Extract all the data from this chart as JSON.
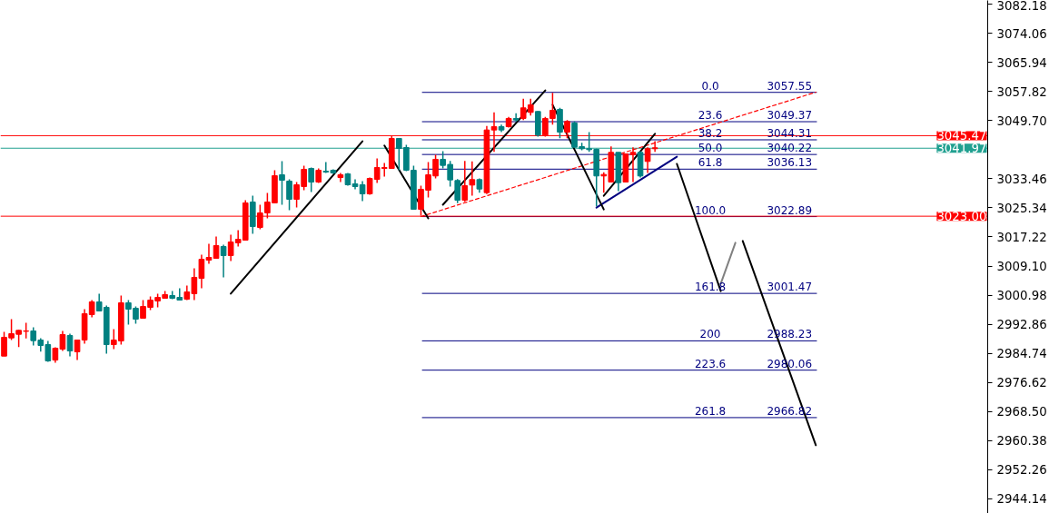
{
  "chart_data": {
    "type": "candlestick",
    "categories": [
      null,
      null,
      null,
      null,
      null,
      null,
      null,
      null,
      null,
      null,
      null,
      null,
      null,
      null,
      null,
      null,
      null,
      null,
      null,
      null,
      null,
      null,
      null,
      null,
      null,
      null,
      null,
      null,
      null,
      null,
      null,
      null,
      null,
      null,
      null,
      null,
      null,
      null,
      null,
      null,
      null,
      null,
      null,
      null,
      null,
      null,
      null,
      null,
      null,
      null,
      null,
      null,
      null,
      null,
      null,
      null,
      null,
      null,
      null,
      null,
      null,
      null,
      null,
      null,
      null,
      null,
      null,
      null,
      null,
      null,
      null,
      null,
      null,
      null,
      null,
      null,
      null,
      null,
      null,
      null,
      null,
      null,
      null,
      null,
      null,
      null,
      null,
      null,
      null,
      null,
      null,
      null,
      null,
      null,
      null,
      null,
      null,
      null,
      null,
      null,
      null,
      null,
      null,
      null,
      null,
      null,
      null,
      null,
      null,
      null,
      null,
      null,
      null,
      null,
      null,
      null,
      null,
      null,
      null,
      null,
      null,
      null,
      null,
      null,
      null,
      null,
      null,
      null,
      null,
      null,
      null,
      null,
      null,
      null,
      null
    ],
    "ohlc": [
      [
        2983.98,
        2990.74,
        2983.98,
        2989.22
      ],
      [
        2989.05,
        2994.28,
        2988.46,
        2990.23
      ],
      [
        2990.06,
        2991.33,
        2986.52,
        2991.16
      ],
      [
        2990.9,
        2993.27,
        2988.88,
        2991.0
      ],
      [
        2990.99,
        2992.0,
        2986.94,
        2988.29
      ],
      [
        2988.46,
        2988.96,
        2985.25,
        2986.94
      ],
      [
        2987.19,
        2988.2,
        2982.38,
        2982.63
      ],
      [
        2982.88,
        2986.43,
        2982.13,
        2986.18
      ],
      [
        2985.93,
        2991.0,
        2985.42,
        2989.98
      ],
      [
        2989.72,
        2990.23,
        2983.9,
        2985.42
      ],
      [
        2985.17,
        2988.46,
        2982.88,
        2988.46
      ],
      [
        2988.46,
        2997.07,
        2987.45,
        2995.8
      ],
      [
        2995.55,
        2999.6,
        2994.79,
        2999.1
      ],
      [
        2999.1,
        3001.38,
        2996.56,
        2996.56
      ],
      [
        2997.58,
        2998.08,
        2984.66,
        2987.19
      ],
      [
        2987.19,
        2991.5,
        2985.93,
        2988.46
      ],
      [
        2988.21,
        3000.87,
        2987.19,
        2998.84
      ],
      [
        2998.84,
        2999.6,
        2992.76,
        2997.07
      ],
      [
        2997.32,
        2997.83,
        2993.0,
        2994.28
      ],
      [
        2994.54,
        2999.6,
        2994.54,
        2997.83
      ],
      [
        2997.58,
        3000.62,
        2996.82,
        2999.6
      ],
      [
        2999.35,
        3001.38,
        2997.58,
        3000.36
      ],
      [
        3000.11,
        3002.14,
        3000.11,
        3001.12
      ],
      [
        3000.87,
        3002.14,
        2999.86,
        3000.11
      ],
      [
        3000.36,
        3002.9,
        2999.6,
        2999.6
      ],
      [
        2999.86,
        3003.66,
        2999.6,
        3001.88
      ],
      [
        3001.38,
        3008.47,
        2999.6,
        3005.94
      ],
      [
        3005.68,
        3012.27,
        3002.9,
        3011.0
      ],
      [
        3010.75,
        3015.31,
        3009.73,
        3011.51
      ],
      [
        3011.25,
        3017.33,
        3011.25,
        3014.8
      ],
      [
        3014.55,
        3015.05,
        3005.94,
        3012.02
      ],
      [
        3012.02,
        3017.84,
        3010.5,
        3015.81
      ],
      [
        3015.56,
        3019.11,
        3014.55,
        3016.57
      ],
      [
        3016.32,
        3027.47,
        3016.32,
        3026.71
      ],
      [
        3026.96,
        3028.73,
        3018.1,
        3020.11
      ],
      [
        3019.87,
        3026.2,
        3019.36,
        3023.92
      ],
      [
        3023.92,
        3029.49,
        3022.4,
        3026.96
      ],
      [
        3026.71,
        3035.83,
        3026.71,
        3034.31
      ],
      [
        3034.56,
        3038.36,
        3026.2,
        3033.04
      ],
      [
        3032.79,
        3033.29,
        3024.68,
        3027.72
      ],
      [
        3027.72,
        3032.53,
        3025.44,
        3031.77
      ],
      [
        3031.27,
        3037.09,
        3030.25,
        3036.08
      ],
      [
        3036.33,
        3036.58,
        3029.75,
        3032.53
      ],
      [
        3032.53,
        3036.33,
        3032.28,
        3035.83
      ],
      [
        3035.57,
        3038.1,
        3035.07,
        3035.32
      ],
      [
        3035.83,
        3036.1,
        3034.8,
        3035.07
      ],
      [
        3033.8,
        3035.07,
        3032.53,
        3034.56
      ],
      [
        3034.81,
        3035.07,
        3031.52,
        3031.77
      ],
      [
        3032.03,
        3033.29,
        3030.51,
        3031.27
      ],
      [
        3031.77,
        3032.79,
        3027.21,
        3029.24
      ],
      [
        3029.24,
        3033.8,
        3028.99,
        3033.54
      ],
      [
        3033.29,
        3039.12,
        3032.28,
        3036.58
      ],
      [
        3036.33,
        3037.85,
        3034.05,
        3036.58
      ],
      [
        3036.33,
        3045.45,
        3036.33,
        3044.69
      ],
      [
        3044.69,
        3044.69,
        3035.83,
        3041.9
      ],
      [
        3042.16,
        3042.92,
        3035.57,
        3035.83
      ],
      [
        3035.83,
        3037.09,
        3024.93,
        3024.93
      ],
      [
        3024.93,
        3031.52,
        3023.16,
        3030.51
      ],
      [
        3030.26,
        3038.1,
        3028.23,
        3034.56
      ],
      [
        3034.23,
        3040.14,
        3033.55,
        3038.87
      ],
      [
        3038.87,
        3041.15,
        3036.34,
        3037.18
      ],
      [
        3037.44,
        3038.45,
        3031.27,
        3033.13
      ],
      [
        3032.96,
        3033.38,
        3026.63,
        3027.47
      ],
      [
        3027.47,
        3038.45,
        3027.05,
        3031.52
      ],
      [
        3031.69,
        3038.28,
        3028.74,
        3033.21
      ],
      [
        3033.21,
        3033.55,
        3029.58,
        3030.6
      ],
      [
        3029.58,
        3048.16,
        3029.16,
        3047.06
      ],
      [
        3047.06,
        3051.96,
        3040.98,
        3047.99
      ],
      [
        3047.99,
        3048.58,
        3046.47,
        3047.06
      ],
      [
        3047.99,
        3050.69,
        3047.74,
        3050.27
      ],
      [
        3050.27,
        3051.7,
        3049.42,
        3049.85
      ],
      [
        3050.27,
        3055.76,
        3049.85,
        3053.22
      ],
      [
        3051.96,
        3055.76,
        3051.11,
        3054.07
      ],
      [
        3052.21,
        3052.38,
        3045.2,
        3045.62
      ],
      [
        3045.62,
        3050.69,
        3045.2,
        3050.27
      ],
      [
        3050.27,
        3057.44,
        3048.58,
        3052.55
      ],
      [
        3052.8,
        3053.22,
        3044.78,
        3046.47
      ],
      [
        3046.47,
        3049.85,
        3044.78,
        3049.42
      ],
      [
        3049.0,
        3049.42,
        3042.0,
        3042.25
      ],
      [
        3042.42,
        3043.51,
        3041.4,
        3041.83
      ],
      [
        3041.83,
        3046.47,
        3040.98,
        3041.57
      ],
      [
        3041.66,
        3041.83,
        3025.78,
        3034.23
      ],
      [
        3034.23,
        3035.24,
        3029.58,
        3034.65
      ],
      [
        3032.54,
        3042.5,
        3032.54,
        3040.81
      ],
      [
        3040.81,
        3040.81,
        3030.0,
        3032.37
      ],
      [
        3032.54,
        3040.39,
        3032.54,
        3040.39
      ],
      [
        3040.14,
        3042.25,
        3032.54,
        3040.81
      ],
      [
        3040.81,
        3041.15,
        3033.8,
        3034.23
      ],
      [
        3038.28,
        3042.25,
        3035.07,
        3041.83
      ],
      [
        3041.83,
        3043.94,
        3040.98,
        3042.08
      ],
      null,
      null,
      null,
      null,
      null,
      null,
      null,
      null,
      null,
      null,
      null,
      null,
      null,
      null,
      null,
      null,
      null,
      null,
      null,
      null,
      null,
      null,
      null,
      null,
      null,
      null,
      null,
      null,
      null,
      null,
      null,
      null,
      null,
      null,
      null,
      null,
      null,
      null,
      null,
      null,
      null,
      null,
      null,
      null,
      null
    ],
    "colors": [
      "#ff0000",
      "#ff0000",
      "#ff0000",
      "#ff0000",
      "#008080",
      "#008080",
      "#008080",
      "#ff0000",
      "#ff0000",
      "#008080",
      "#ff0000",
      "#ff0000",
      "#ff0000",
      "#008080",
      "#008080",
      "#ff0000",
      "#ff0000",
      "#008080",
      "#008080",
      "#ff0000",
      "#ff0000",
      "#ff0000",
      "#ff0000",
      "#008080",
      "#008080",
      "#ff0000",
      "#ff0000",
      "#ff0000",
      "#ff0000",
      "#ff0000",
      "#008080",
      "#ff0000",
      "#ff0000",
      "#ff0000",
      "#008080",
      "#ff0000",
      "#ff0000",
      "#ff0000",
      "#008080",
      "#008080",
      "#ff0000",
      "#ff0000",
      "#008080",
      "#ff0000",
      "#008080",
      "#008080",
      "#ff0000",
      "#008080",
      "#008080",
      "#008080",
      "#ff0000",
      "#ff0000",
      "#ff0000",
      "#ff0000",
      "#008080",
      "#008080",
      "#008080",
      "#ff0000",
      "#ff0000",
      "#ff0000",
      "#008080",
      "#008080",
      "#008080",
      "#ff0000",
      "#ff0000",
      "#008080",
      "#ff0000",
      "#ff0000",
      "#008080",
      "#ff0000",
      "#008080",
      "#ff0000",
      "#ff0000",
      "#008080",
      "#ff0000",
      "#ff0000",
      "#008080",
      "#ff0000",
      "#008080",
      "#008080",
      "#008080",
      "#008080",
      "#ff0000",
      "#ff0000",
      "#008080",
      "#ff0000",
      "#ff0000",
      "#008080",
      "#ff0000",
      "#ff0000",
      null,
      null,
      null,
      null,
      null,
      null,
      null,
      null,
      null,
      null,
      null,
      null,
      null,
      null,
      null,
      null,
      null,
      null,
      null,
      null,
      null,
      null,
      null,
      null,
      null,
      null,
      null,
      null,
      null,
      null,
      null,
      null,
      null,
      null,
      null,
      null,
      null,
      null,
      null,
      null,
      null,
      null,
      null,
      null,
      null
    ],
    "series": [
      {
        "type": "line",
        "color": "#ff0000",
        "line_style": "dashed",
        "values": [
          null,
          null,
          null,
          null,
          null,
          null,
          null,
          null,
          null,
          null,
          null,
          null,
          null,
          null,
          null,
          null,
          null,
          null,
          null,
          null,
          null,
          null,
          null,
          null,
          null,
          null,
          null,
          null,
          null,
          null,
          null,
          null,
          null,
          null,
          null,
          null,
          null,
          null,
          null,
          null,
          null,
          null,
          null,
          null,
          null,
          null,
          null,
          null,
          null,
          null,
          null,
          null,
          null,
          null,
          null,
          null,
          null,
          3022.9,
          null,
          null,
          null,
          null,
          null,
          null,
          null,
          null,
          null,
          null,
          null,
          null,
          null,
          null,
          null,
          null,
          null,
          null,
          null,
          null,
          null,
          null,
          null,
          null,
          null,
          null,
          null,
          null,
          null,
          null,
          null,
          null,
          null,
          null,
          null,
          null,
          null,
          null,
          null,
          null,
          null,
          null,
          null,
          null,
          null,
          null,
          null,
          null,
          null,
          null,
          null,
          null,
          null,
          3057.6,
          null,
          null,
          null,
          null,
          null,
          null,
          null,
          null,
          null,
          null,
          null,
          null,
          null,
          null,
          null,
          null,
          null,
          null,
          null,
          null,
          null,
          null,
          null
        ]
      },
      {
        "type": "line",
        "color": "#000080",
        "values": [
          null,
          null,
          null,
          null,
          null,
          null,
          null,
          null,
          null,
          null,
          null,
          null,
          null,
          null,
          null,
          null,
          null,
          null,
          null,
          null,
          null,
          null,
          null,
          null,
          null,
          null,
          null,
          null,
          null,
          null,
          null,
          null,
          null,
          null,
          null,
          null,
          null,
          null,
          null,
          null,
          null,
          null,
          null,
          null,
          null,
          null,
          null,
          null,
          null,
          null,
          null,
          null,
          null,
          null,
          null,
          null,
          null,
          null,
          null,
          null,
          null,
          null,
          null,
          null,
          null,
          null,
          null,
          null,
          null,
          null,
          null,
          null,
          null,
          null,
          null,
          null,
          null,
          null,
          null,
          null,
          null,
          3025.4,
          null,
          null,
          null,
          null,
          null,
          null,
          null,
          null,
          null,
          null,
          3039.6,
          null,
          null,
          null,
          null,
          null,
          null,
          null,
          null,
          null,
          null,
          null,
          null,
          null,
          null,
          null,
          null,
          null,
          null,
          null,
          null,
          null,
          null,
          null,
          null,
          null,
          null,
          null,
          null,
          null,
          null,
          null,
          null,
          null,
          null,
          null,
          null,
          null,
          null,
          null,
          null,
          null,
          null
        ]
      },
      {
        "type": "line",
        "color": "#000000",
        "values": [
          null,
          null,
          null,
          null,
          null,
          null,
          null,
          null,
          null,
          null,
          null,
          null,
          null,
          null,
          null,
          null,
          null,
          null,
          null,
          null,
          null,
          null,
          null,
          null,
          null,
          null,
          null,
          null,
          null,
          null,
          null,
          3001.4,
          null,
          null,
          null,
          null,
          null,
          null,
          null,
          null,
          null,
          null,
          null,
          null,
          null,
          null,
          null,
          null,
          null,
          3043.9,
          null,
          null,
          null,
          null,
          null,
          null,
          null,
          null,
          null,
          null,
          null,
          null,
          null,
          null,
          null,
          null,
          null,
          null,
          null,
          null,
          null,
          null,
          null,
          null,
          null,
          null,
          null,
          null,
          null,
          null,
          null,
          null,
          null,
          null,
          null,
          null,
          null,
          null,
          null,
          null,
          null,
          null,
          null,
          null,
          null,
          null,
          null,
          null,
          null,
          null,
          null,
          null,
          null,
          null,
          null,
          null,
          null,
          null,
          null,
          null,
          null,
          null,
          null,
          null,
          null,
          null,
          null,
          null,
          null,
          null,
          null,
          null,
          null,
          null,
          null,
          null,
          null,
          null,
          null,
          null,
          null,
          null,
          null,
          null,
          null
        ]
      },
      {
        "type": "line",
        "color": "#000000",
        "values": [
          null,
          null,
          null,
          null,
          null,
          null,
          null,
          null,
          null,
          null,
          null,
          null,
          null,
          null,
          null,
          null,
          null,
          null,
          null,
          null,
          null,
          null,
          null,
          null,
          null,
          null,
          null,
          null,
          null,
          null,
          null,
          null,
          null,
          null,
          null,
          null,
          null,
          null,
          null,
          null,
          null,
          null,
          null,
          null,
          null,
          null,
          null,
          null,
          null,
          null,
          null,
          null,
          3042.7,
          null,
          null,
          null,
          null,
          null,
          3022.4,
          null,
          null,
          null,
          null,
          null,
          null,
          null,
          null,
          null,
          null,
          null,
          null,
          null,
          null,
          null,
          null,
          null,
          null,
          null,
          null,
          null,
          null,
          null,
          null,
          null,
          null,
          null,
          null,
          null,
          null,
          null,
          null,
          null,
          null,
          null,
          null,
          null,
          null,
          null,
          null,
          null,
          null,
          null,
          null,
          null,
          null,
          null,
          null,
          null,
          null,
          null,
          null,
          null,
          null,
          null,
          null,
          null,
          null,
          null,
          null,
          null,
          null,
          null,
          null,
          null,
          null,
          null,
          null,
          null,
          null,
          null,
          null,
          null,
          null,
          null,
          null
        ]
      },
      {
        "type": "line",
        "color": "#000000",
        "values": [
          null,
          null,
          null,
          null,
          null,
          null,
          null,
          null,
          null,
          null,
          null,
          null,
          null,
          null,
          null,
          null,
          null,
          null,
          null,
          null,
          null,
          null,
          null,
          null,
          null,
          null,
          null,
          null,
          null,
          null,
          null,
          null,
          null,
          null,
          null,
          null,
          null,
          null,
          null,
          null,
          null,
          null,
          null,
          null,
          null,
          null,
          null,
          null,
          null,
          null,
          null,
          null,
          null,
          null,
          null,
          null,
          null,
          null,
          null,
          null,
          3026.2,
          null,
          null,
          null,
          null,
          null,
          null,
          null,
          null,
          null,
          null,
          null,
          null,
          null,
          3058.1,
          null,
          null,
          null,
          null,
          null,
          null,
          null,
          null,
          null,
          null,
          null,
          null,
          null,
          null,
          null,
          null,
          null,
          null,
          null,
          null,
          null,
          null,
          null,
          null,
          null,
          null,
          null,
          null,
          null,
          null,
          null,
          null,
          null,
          null,
          null,
          null,
          null,
          null,
          null,
          null,
          null,
          null,
          null,
          null,
          null,
          null,
          null,
          null,
          null,
          null,
          null,
          null,
          null,
          null,
          null,
          null,
          null,
          null,
          null,
          null
        ]
      },
      {
        "type": "line",
        "color": "#000000",
        "values": [
          null,
          null,
          null,
          null,
          null,
          null,
          null,
          null,
          null,
          null,
          null,
          null,
          null,
          null,
          null,
          null,
          null,
          null,
          null,
          null,
          null,
          null,
          null,
          null,
          null,
          null,
          null,
          null,
          null,
          null,
          null,
          null,
          null,
          null,
          null,
          null,
          null,
          null,
          null,
          null,
          null,
          null,
          null,
          null,
          null,
          null,
          null,
          null,
          null,
          null,
          null,
          null,
          null,
          null,
          null,
          null,
          null,
          null,
          null,
          null,
          null,
          null,
          null,
          null,
          null,
          null,
          null,
          null,
          null,
          null,
          null,
          null,
          null,
          null,
          null,
          3054.1,
          null,
          null,
          null,
          null,
          null,
          null,
          3024.9,
          null,
          null,
          null,
          null,
          null,
          null,
          null,
          null,
          null,
          null,
          null,
          null,
          null,
          null,
          null,
          null,
          null,
          null,
          null,
          null,
          null,
          null,
          null,
          null,
          null,
          null,
          null,
          null,
          null,
          null,
          null,
          null,
          null,
          null,
          null,
          null,
          null,
          null,
          null,
          null,
          null,
          null,
          null,
          null,
          null,
          null,
          null,
          null,
          null,
          null,
          null,
          null
        ]
      },
      {
        "type": "line",
        "color": "#000000",
        "values": [
          null,
          null,
          null,
          null,
          null,
          null,
          null,
          null,
          null,
          null,
          null,
          null,
          null,
          null,
          null,
          null,
          null,
          null,
          null,
          null,
          null,
          null,
          null,
          null,
          null,
          null,
          null,
          null,
          null,
          null,
          null,
          null,
          null,
          null,
          null,
          null,
          null,
          null,
          null,
          null,
          null,
          null,
          null,
          null,
          null,
          null,
          null,
          null,
          null,
          null,
          null,
          null,
          null,
          null,
          null,
          null,
          null,
          null,
          null,
          null,
          null,
          null,
          null,
          null,
          null,
          null,
          null,
          null,
          null,
          null,
          null,
          null,
          null,
          null,
          null,
          null,
          null,
          null,
          null,
          null,
          null,
          null,
          3028.7,
          null,
          null,
          null,
          null,
          null,
          null,
          3046.0,
          null,
          null,
          null,
          null,
          null,
          null,
          null,
          null,
          null,
          null,
          null,
          null,
          null,
          null,
          null,
          null,
          null,
          null,
          null,
          null,
          null,
          null,
          null,
          null,
          null,
          null,
          null,
          null,
          null,
          null,
          null,
          null,
          null,
          null,
          null,
          null,
          null,
          null,
          null,
          null,
          null,
          null,
          null,
          null,
          null
        ]
      },
      {
        "type": "line",
        "color": "#000000",
        "values": [
          null,
          null,
          null,
          null,
          null,
          null,
          null,
          null,
          null,
          null,
          null,
          null,
          null,
          null,
          null,
          null,
          null,
          null,
          null,
          null,
          null,
          null,
          null,
          null,
          null,
          null,
          null,
          null,
          null,
          null,
          null,
          null,
          null,
          null,
          null,
          null,
          null,
          null,
          null,
          null,
          null,
          null,
          null,
          null,
          null,
          null,
          null,
          null,
          null,
          null,
          null,
          null,
          null,
          null,
          null,
          null,
          null,
          null,
          null,
          null,
          null,
          null,
          null,
          null,
          null,
          null,
          null,
          null,
          null,
          null,
          null,
          null,
          null,
          null,
          null,
          null,
          null,
          null,
          null,
          null,
          null,
          null,
          null,
          null,
          null,
          null,
          null,
          null,
          null,
          null,
          null,
          null,
          3037.6,
          null,
          null,
          null,
          null,
          null,
          3002.1,
          null,
          null,
          null,
          null,
          null,
          null,
          null,
          null,
          null,
          null,
          null,
          null,
          null,
          null,
          null,
          null,
          null,
          null,
          null,
          null,
          null,
          null,
          null,
          null,
          null,
          null,
          null,
          null,
          null,
          null,
          null,
          null,
          null,
          null,
          null,
          null
        ]
      },
      {
        "type": "line",
        "color": "#808080",
        "values": [
          null,
          null,
          null,
          null,
          null,
          null,
          null,
          null,
          null,
          null,
          null,
          null,
          null,
          null,
          null,
          null,
          null,
          null,
          null,
          null,
          null,
          null,
          null,
          null,
          null,
          null,
          null,
          null,
          null,
          null,
          null,
          null,
          null,
          null,
          null,
          null,
          null,
          null,
          null,
          null,
          null,
          null,
          null,
          null,
          null,
          null,
          null,
          null,
          null,
          null,
          null,
          null,
          null,
          null,
          null,
          null,
          null,
          null,
          null,
          null,
          null,
          null,
          null,
          null,
          null,
          null,
          null,
          null,
          null,
          null,
          null,
          null,
          null,
          null,
          null,
          null,
          null,
          null,
          null,
          null,
          null,
          null,
          null,
          null,
          null,
          null,
          null,
          null,
          null,
          null,
          null,
          null,
          null,
          null,
          null,
          null,
          null,
          null,
          3004.2,
          null,
          3015.6,
          null,
          null,
          null,
          null,
          null,
          null,
          null,
          null,
          null,
          null,
          null,
          null,
          null,
          null,
          null,
          null,
          null,
          null,
          null,
          null,
          null,
          null,
          null,
          null,
          null,
          null,
          null,
          null,
          null,
          null,
          null,
          null,
          null,
          null
        ]
      },
      {
        "type": "line",
        "color": "#000000",
        "values": [
          null,
          null,
          null,
          null,
          null,
          null,
          null,
          null,
          null,
          null,
          null,
          null,
          null,
          null,
          null,
          null,
          null,
          null,
          null,
          null,
          null,
          null,
          null,
          null,
          null,
          null,
          null,
          null,
          null,
          null,
          null,
          null,
          null,
          null,
          null,
          null,
          null,
          null,
          null,
          null,
          null,
          null,
          null,
          null,
          null,
          null,
          null,
          null,
          null,
          null,
          null,
          null,
          null,
          null,
          null,
          null,
          null,
          null,
          null,
          null,
          null,
          null,
          null,
          null,
          null,
          null,
          null,
          null,
          null,
          null,
          null,
          null,
          null,
          null,
          null,
          null,
          null,
          null,
          null,
          null,
          null,
          null,
          null,
          null,
          null,
          null,
          null,
          null,
          null,
          null,
          null,
          null,
          null,
          null,
          null,
          null,
          null,
          null,
          null,
          null,
          null,
          3016.1,
          null,
          null,
          null,
          null,
          null,
          null,
          null,
          null,
          null,
          2959.1,
          null,
          null,
          null,
          null,
          null,
          null,
          null,
          null,
          null,
          null,
          null,
          null,
          null,
          null,
          null,
          null,
          null,
          null,
          null,
          null,
          null,
          null,
          null
        ]
      }
    ],
    "ylim": [
      2940.08,
      3083.19
    ],
    "yticks": [
      3082.18,
      3074.06,
      3065.94,
      {
        "value": 3057.82,
        "label": "3057.82"
      },
      {
        "value": 3049.7,
        "label": "3049.70"
      },
      3033.46,
      3025.34,
      3017.22,
      {
        "value": 3009.1,
        "label": "3009.10"
      },
      3000.98,
      2992.86,
      2984.74,
      2976.62,
      {
        "value": 2968.5,
        "label": "2968.50"
      },
      2960.38,
      2952.26,
      2944.14
    ],
    "tick_labels": "y",
    "ref_lines": [
      {
        "axis": "y",
        "value": 3057.55,
        "label": "3057.55",
        "color": "#000080"
      },
      {
        "axis": "y",
        "value": 3049.37,
        "label": "3049.37",
        "color": "#000080"
      },
      {
        "axis": "y",
        "value": 3044.31,
        "label": "3044.31",
        "color": "#000080"
      },
      {
        "axis": "y",
        "value": 3040.22,
        "label": "3040.22",
        "color": "#000080"
      },
      {
        "axis": "y",
        "value": 3036.13,
        "label": "3036.13",
        "color": "#000080"
      },
      {
        "axis": "y",
        "value": 3022.89,
        "label": "3022.89",
        "color": "#000080"
      },
      {
        "axis": "y",
        "value": 3001.47,
        "label": "3001.47",
        "color": "#000080"
      },
      {
        "axis": "y",
        "value": 2988.23,
        "label": "2988.23",
        "color": "#000080"
      },
      {
        "axis": "y",
        "value": 2980.06,
        "label": "2980.06",
        "color": "#000080"
      },
      {
        "axis": "y",
        "value": 2966.82,
        "label": "2966.82",
        "color": "#000080"
      },
      {
        "axis": "y",
        "value": 3045.47,
        "label": "3045.47",
        "color": "#ff0000"
      },
      {
        "axis": "y",
        "value": 3041.97,
        "label": "3041.97",
        "color": "#20a090"
      },
      {
        "axis": "y",
        "value": 3023.0,
        "label": "3023.00",
        "color": "#ff0000"
      }
    ],
    "annotations": [
      {
        "text": "0.0",
        "y": 3057.55
      },
      {
        "text": "23.6",
        "y": 3049.37
      },
      {
        "text": "38.2",
        "y": 3044.31
      },
      {
        "text": "50.0",
        "y": 3040.22
      },
      {
        "text": "61.8",
        "y": 3036.13
      },
      {
        "text": "100.0",
        "y": 3022.89
      },
      {
        "text": "161.8",
        "y": 3001.47
      },
      {
        "text": "200",
        "y": 2988.23
      },
      {
        "text": "223.6",
        "y": 2980.06
      },
      {
        "text": "261.8",
        "y": 2966.82
      }
    ],
    "grid": false
  }
}
